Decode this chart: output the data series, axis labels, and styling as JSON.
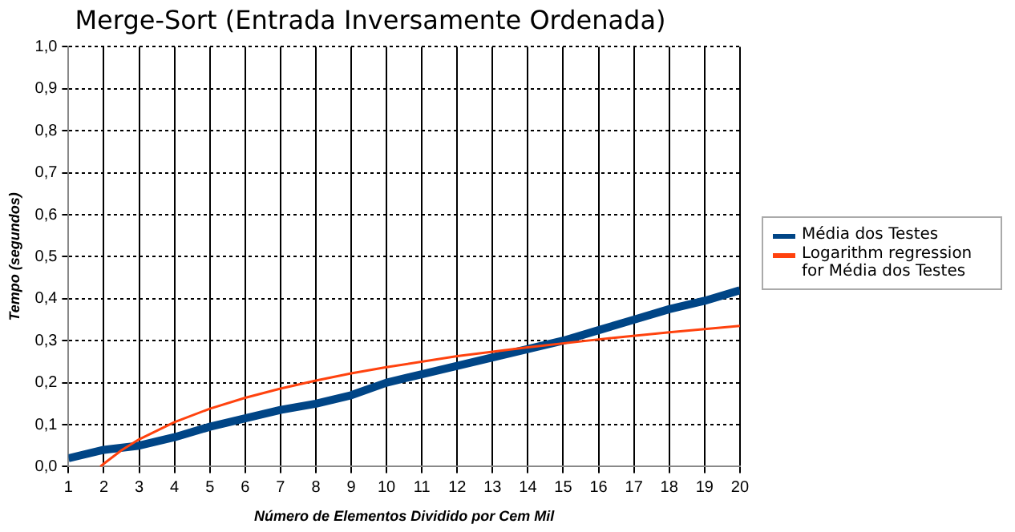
{
  "chart_data": {
    "type": "line",
    "title": "Merge-Sort (Entrada Inversamente Ordenada)",
    "xlabel": "Número de Elementos Dividido por Cem Mil",
    "ylabel": "Tempo (segundos)",
    "xlim": [
      1,
      20
    ],
    "xticks": [
      1,
      2,
      3,
      4,
      5,
      6,
      7,
      8,
      9,
      10,
      11,
      12,
      13,
      14,
      15,
      16,
      17,
      18,
      19,
      20
    ],
    "ylim": [
      0,
      1
    ],
    "yticks": [
      {
        "value": 0,
        "label": "0,0"
      },
      {
        "value": 0.1,
        "label": "0,1"
      },
      {
        "value": 0.2,
        "label": "0,2"
      },
      {
        "value": 0.3,
        "label": "0,3"
      },
      {
        "value": 0.4,
        "label": "0,4"
      },
      {
        "value": 0.5,
        "label": "0,5"
      },
      {
        "value": 0.6,
        "label": "0,6"
      },
      {
        "value": 0.7,
        "label": "0,7"
      },
      {
        "value": 0.8,
        "label": "0,8"
      },
      {
        "value": 0.9,
        "label": "0,9"
      },
      {
        "value": 1,
        "label": "1,0"
      }
    ],
    "grid": true,
    "legend": "right",
    "marker": "none",
    "series": [
      {
        "name": "Média dos Testes",
        "color": "#004586",
        "x": [
          1,
          2,
          3,
          4,
          5,
          6,
          7,
          8,
          9,
          10,
          11,
          12,
          13,
          14,
          15,
          16,
          17,
          18,
          19,
          20
        ],
        "values": [
          0.02,
          0.04,
          0.05,
          0.07,
          0.095,
          0.115,
          0.135,
          0.15,
          0.17,
          0.2,
          0.22,
          0.24,
          0.26,
          0.28,
          0.3,
          0.325,
          0.35,
          0.375,
          0.395,
          0.42
        ]
      },
      {
        "name": "Logarithm regression for Média dos Testes",
        "color": "#ff420e",
        "x": [
          1.9,
          2,
          2.5,
          3,
          4,
          5,
          6,
          7,
          8,
          9,
          10,
          12,
          14,
          16,
          18,
          20
        ],
        "values": [
          0,
          0.007,
          0.039,
          0.065,
          0.106,
          0.138,
          0.164,
          0.186,
          0.205,
          0.222,
          0.237,
          0.263,
          0.284,
          0.303,
          0.32,
          0.335
        ]
      }
    ]
  }
}
